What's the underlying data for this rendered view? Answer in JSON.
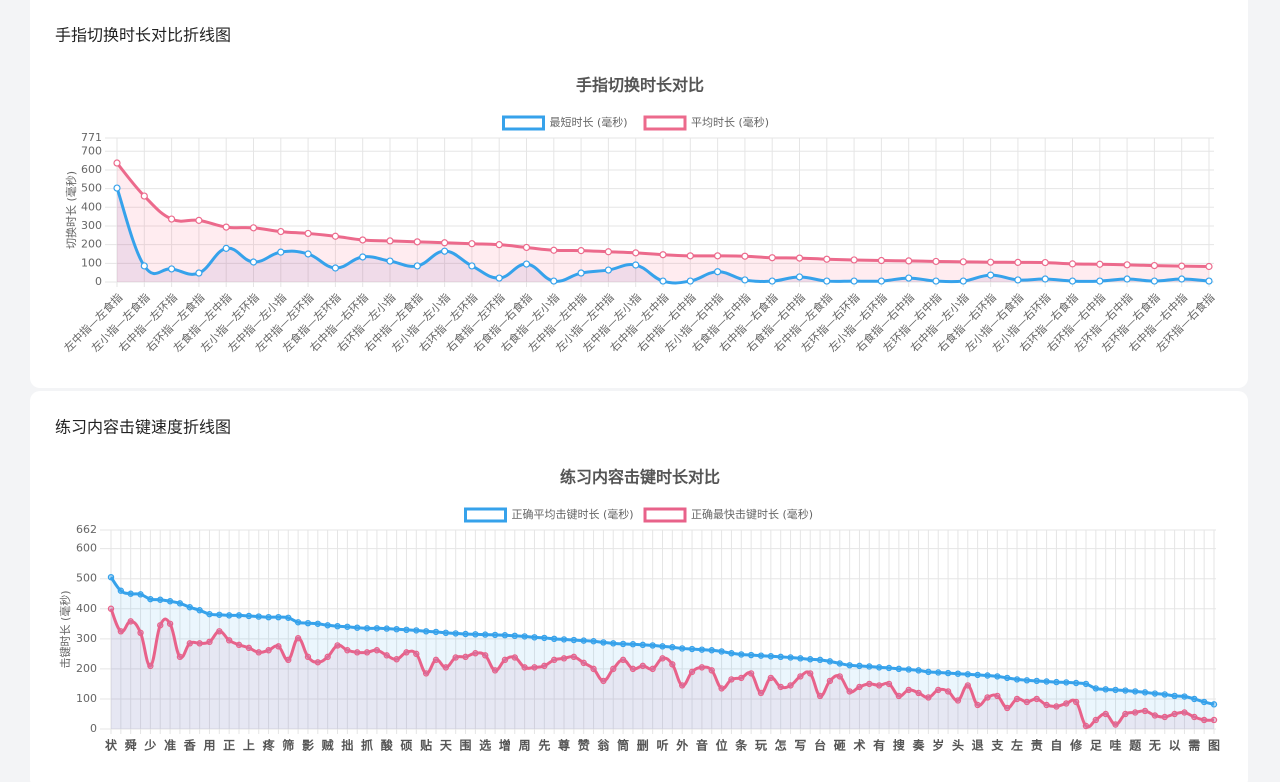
{
  "chart_data": [
    {
      "type": "line",
      "panel_title": "手指切换时长对比折线图",
      "title": "手指切换时长对比",
      "ylabel": "切换时长 (毫秒)",
      "categories": [
        "左中指—左食指",
        "左小指—左食指",
        "右中指—左环指",
        "右环指—左食指",
        "左食指—左中指",
        "左小指—左环指",
        "左中指—左小指",
        "左中指—左环指",
        "左食指—左环指",
        "右中指—右环指",
        "右环指—左小指",
        "右中指—左食指",
        "左小指—左小指",
        "右环指—左环指",
        "右食指—左环指",
        "右食指—右食指",
        "右食指—左小指",
        "左中指—左中指",
        "左小指—左中指",
        "左中指—左小指",
        "右中指—左中指",
        "右中指—右中指",
        "左小指—右中指",
        "右食指—右中指",
        "右中指—右食指",
        "右食指—右中指",
        "右中指—左食指",
        "左环指—右环指",
        "左小指—右环指",
        "右食指—右中指",
        "左环指—右中指",
        "右中指—左小指",
        "右食指—右环指",
        "左小指—右食指",
        "左小指—右环指",
        "右环指—右食指",
        "右环指—右中指",
        "左环指—右中指",
        "左环指—右食指",
        "右中指—右中指",
        "左环指—右食指"
      ],
      "series": [
        {
          "name": "最短时长 (毫秒)",
          "color": "#36a2eb",
          "fill": "rgba(120,110,190,0.13)",
          "values": [
            503,
            86,
            70,
            48,
            180,
            107,
            160,
            150,
            75,
            134,
            112,
            86,
            165,
            86,
            21,
            96,
            5,
            48,
            64,
            91,
            5,
            5,
            55,
            11,
            5,
            27,
            5,
            5,
            5,
            21,
            5,
            5,
            37,
            11,
            16,
            5,
            5,
            16,
            5,
            16,
            5
          ]
        },
        {
          "name": "平均时长 (毫秒)",
          "color": "#ec6a8c",
          "fill": "rgba(255,99,132,0.12)",
          "values": [
            637,
            460,
            337,
            330,
            294,
            290,
            270,
            260,
            245,
            225,
            220,
            215,
            210,
            205,
            200,
            185,
            170,
            168,
            162,
            156,
            146,
            140,
            140,
            138,
            130,
            128,
            122,
            118,
            115,
            113,
            110,
            108,
            106,
            105,
            104,
            97,
            95,
            92,
            88,
            85,
            83
          ]
        }
      ],
      "ylim": [
        0,
        771
      ],
      "yticks": [
        0,
        100,
        200,
        300,
        400,
        500,
        600,
        700,
        771
      ],
      "grid": true
    },
    {
      "type": "line",
      "panel_title": "练习内容击键速度折线图",
      "title": "练习内容击键时长对比",
      "ylabel": "击键时长 (毫秒)",
      "categories": [
        "状",
        null,
        "舜",
        null,
        "少",
        null,
        "准",
        null,
        "香",
        null,
        "用",
        null,
        "正",
        null,
        "上",
        null,
        "疼",
        null,
        "筛",
        null,
        "影",
        null,
        "贼",
        null,
        "拙",
        null,
        "抓",
        null,
        "酸",
        null,
        "硕",
        null,
        "贴",
        null,
        "天",
        null,
        "围",
        null,
        "选",
        null,
        "增",
        null,
        "周",
        null,
        "先",
        null,
        "尊",
        null,
        "赞",
        null,
        "翁",
        null,
        "筒",
        null,
        "删",
        null,
        "听",
        null,
        "外",
        null,
        "音",
        null,
        "位",
        null,
        "条",
        null,
        "玩",
        null,
        "怎",
        null,
        "写",
        null,
        "台",
        null,
        "砸",
        null,
        "术",
        null,
        "有",
        null,
        "搜",
        null,
        "奏",
        null,
        "岁",
        null,
        "头",
        null,
        "退",
        null,
        "支",
        null,
        "左",
        null,
        "责",
        null,
        "自",
        null,
        "修",
        null,
        "足",
        null,
        "哇",
        null,
        "题",
        null,
        "无",
        null,
        "以",
        null,
        "需",
        null,
        "图"
      ],
      "series": [
        {
          "name": "正确平均击键时长 (毫秒)",
          "color": "#36a2eb",
          "fill": "rgba(54,162,235,0.1)",
          "values": [
            505,
            460,
            450,
            448,
            432,
            430,
            425,
            418,
            405,
            395,
            382,
            380,
            378,
            378,
            376,
            374,
            372,
            372,
            370,
            355,
            352,
            350,
            345,
            342,
            340,
            337,
            335,
            335,
            334,
            332,
            330,
            328,
            325,
            323,
            320,
            318,
            316,
            315,
            314,
            313,
            312,
            310,
            308,
            305,
            303,
            300,
            298,
            296,
            294,
            292,
            288,
            285,
            283,
            282,
            280,
            278,
            275,
            272,
            268,
            266,
            264,
            262,
            258,
            252,
            248,
            246,
            244,
            242,
            240,
            238,
            235,
            232,
            230,
            225,
            218,
            212,
            210,
            208,
            205,
            203,
            200,
            198,
            195,
            190,
            188,
            186,
            184,
            182,
            180,
            178,
            175,
            170,
            165,
            162,
            160,
            158,
            156,
            155,
            153,
            150,
            135,
            132,
            130,
            128,
            125,
            122,
            118,
            115,
            110,
            108,
            100,
            90,
            82
          ]
        },
        {
          "name": "正确最快击键时长 (毫秒)",
          "color": "#e8628a",
          "fill": "rgba(200,120,170,0.12)",
          "values": [
            400,
            325,
            358,
            320,
            210,
            345,
            350,
            240,
            285,
            285,
            290,
            325,
            295,
            280,
            270,
            255,
            262,
            275,
            230,
            302,
            240,
            222,
            240,
            278,
            262,
            255,
            255,
            262,
            245,
            232,
            255,
            250,
            185,
            230,
            205,
            238,
            240,
            252,
            245,
            195,
            230,
            238,
            205,
            205,
            210,
            230,
            235,
            240,
            220,
            200,
            160,
            200,
            230,
            200,
            210,
            200,
            235,
            215,
            145,
            190,
            205,
            195,
            135,
            165,
            170,
            185,
            120,
            170,
            140,
            145,
            175,
            185,
            110,
            160,
            175,
            125,
            140,
            150,
            145,
            150,
            110,
            130,
            120,
            105,
            130,
            125,
            95,
            145,
            80,
            105,
            110,
            70,
            100,
            90,
            100,
            80,
            75,
            85,
            90,
            10,
            30,
            50,
            15,
            50,
            55,
            60,
            45,
            40,
            50,
            55,
            40,
            30,
            30
          ]
        }
      ],
      "ylim": [
        0,
        662
      ],
      "yticks": [
        0,
        100,
        200,
        300,
        400,
        500,
        600,
        662
      ],
      "grid": true
    }
  ]
}
